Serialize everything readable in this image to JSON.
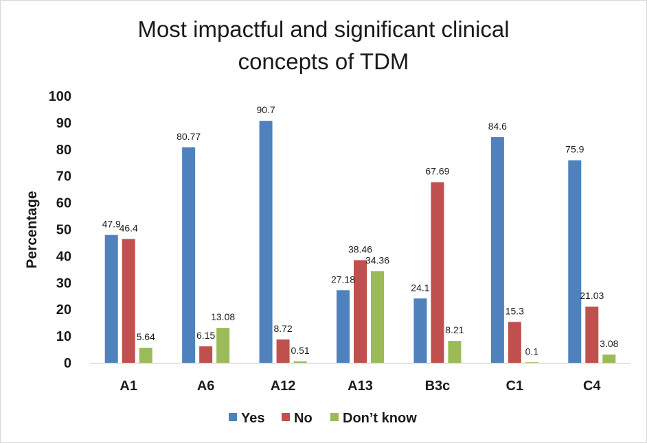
{
  "chart_data": {
    "type": "bar",
    "title_lines": [
      "Most impactful and significant clinical",
      "concepts of TDM"
    ],
    "xlabel": "",
    "ylabel": "Percentage",
    "ylim": [
      0,
      100
    ],
    "yticks": [
      0,
      10,
      20,
      30,
      40,
      50,
      60,
      70,
      80,
      90,
      100
    ],
    "categories": [
      "A1",
      "A6",
      "A12",
      "A13",
      "B3c",
      "C1",
      "C4"
    ],
    "series": [
      {
        "name": "Yes",
        "color": "#4F81BD",
        "values": [
          47.9,
          80.77,
          90.7,
          27.18,
          24.1,
          84.6,
          75.9
        ]
      },
      {
        "name": "No",
        "color": "#C0504D",
        "values": [
          46.4,
          6.15,
          8.72,
          38.46,
          67.69,
          15.3,
          21.03
        ]
      },
      {
        "name": "Don’t know",
        "color": "#9BBB59",
        "values": [
          5.64,
          13.08,
          0.51,
          34.36,
          8.21,
          0.1,
          3.08
        ]
      }
    ],
    "legend_position": "bottom",
    "grid": false
  }
}
